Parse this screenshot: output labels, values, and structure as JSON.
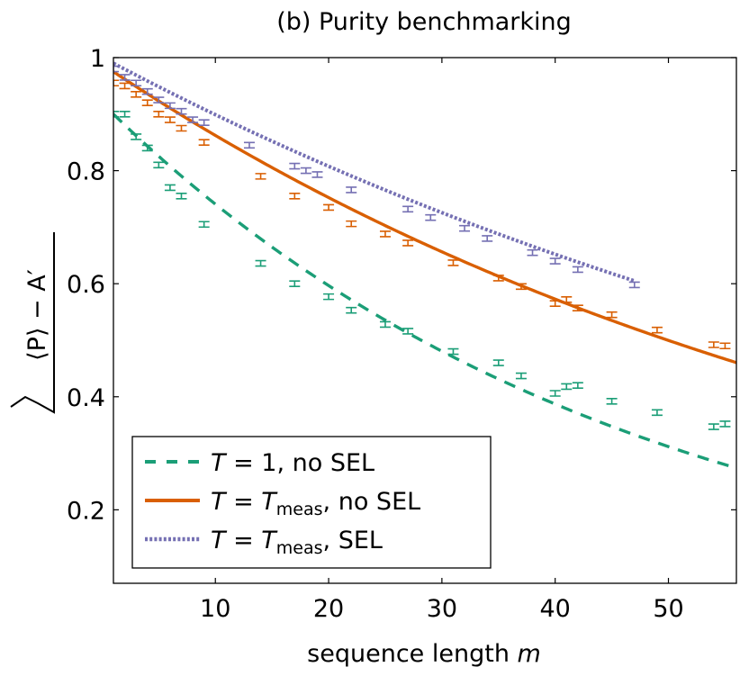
{
  "chart_data": {
    "type": "line",
    "title": "(b) Purity benchmarking",
    "xlabel": "sequence length m",
    "ylabel": "√⟨P⟩ − A′",
    "xlim": [
      1,
      56
    ],
    "ylim": [
      0.07,
      1.0
    ],
    "xticks": [
      10,
      20,
      30,
      40,
      50
    ],
    "yticks": [
      0.2,
      0.4,
      0.6,
      0.8,
      1.0
    ],
    "ytick_labels": [
      "0.2",
      "0.4",
      "0.6",
      "0.8",
      "1"
    ],
    "grid": false,
    "legend": "bottom-left",
    "colors": {
      "green": "#1b9e77",
      "orange": "#d95f02",
      "purple": "#7570b3"
    },
    "series": [
      {
        "name": "T = 1, no SEL",
        "legend": {
          "lhs": "T",
          "rhs": "1",
          "rest": ", no SEL",
          "sub": ""
        },
        "color": "#1b9e77",
        "style": "dashed",
        "fit": {
          "a": 0.9,
          "p": 0.9786
        },
        "points": [
          {
            "x": 1,
            "y": 0.9
          },
          {
            "x": 2,
            "y": 0.9
          },
          {
            "x": 3,
            "y": 0.86
          },
          {
            "x": 4,
            "y": 0.84
          },
          {
            "x": 5,
            "y": 0.81
          },
          {
            "x": 6,
            "y": 0.77
          },
          {
            "x": 7,
            "y": 0.755
          },
          {
            "x": 9,
            "y": 0.705
          },
          {
            "x": 14,
            "y": 0.636
          },
          {
            "x": 17,
            "y": 0.6
          },
          {
            "x": 20,
            "y": 0.577
          },
          {
            "x": 22,
            "y": 0.553
          },
          {
            "x": 25,
            "y": 0.528
          },
          {
            "x": 27,
            "y": 0.516
          },
          {
            "x": 31,
            "y": 0.48
          },
          {
            "x": 35,
            "y": 0.46
          },
          {
            "x": 37,
            "y": 0.437
          },
          {
            "x": 40,
            "y": 0.406
          },
          {
            "x": 41,
            "y": 0.418
          },
          {
            "x": 42,
            "y": 0.42
          },
          {
            "x": 45,
            "y": 0.392
          },
          {
            "x": 49,
            "y": 0.372
          },
          {
            "x": 54,
            "y": 0.347
          },
          {
            "x": 55,
            "y": 0.352
          }
        ]
      },
      {
        "name": "T = Tmeas, no SEL",
        "legend": {
          "lhs": "T",
          "rhs": "T",
          "rest": ", no SEL",
          "sub": "meas"
        },
        "color": "#d95f02",
        "style": "solid",
        "fit": {
          "a": 0.975,
          "p": 0.98645
        },
        "points": [
          {
            "x": 1,
            "y": 0.955
          },
          {
            "x": 2,
            "y": 0.95
          },
          {
            "x": 3,
            "y": 0.935
          },
          {
            "x": 4,
            "y": 0.92
          },
          {
            "x": 5,
            "y": 0.9
          },
          {
            "x": 6,
            "y": 0.89
          },
          {
            "x": 7,
            "y": 0.875
          },
          {
            "x": 9,
            "y": 0.85
          },
          {
            "x": 14,
            "y": 0.79
          },
          {
            "x": 17,
            "y": 0.755
          },
          {
            "x": 20,
            "y": 0.735
          },
          {
            "x": 22,
            "y": 0.706
          },
          {
            "x": 25,
            "y": 0.688
          },
          {
            "x": 27,
            "y": 0.672
          },
          {
            "x": 31,
            "y": 0.637
          },
          {
            "x": 35,
            "y": 0.61
          },
          {
            "x": 37,
            "y": 0.595
          },
          {
            "x": 40,
            "y": 0.565
          },
          {
            "x": 41,
            "y": 0.572
          },
          {
            "x": 42,
            "y": 0.557
          },
          {
            "x": 45,
            "y": 0.545
          },
          {
            "x": 49,
            "y": 0.518
          },
          {
            "x": 54,
            "y": 0.492
          },
          {
            "x": 55,
            "y": 0.49
          }
        ]
      },
      {
        "name": "T = Tmeas, SEL",
        "legend": {
          "lhs": "T",
          "rhs": "T",
          "rest": ", SEL",
          "sub": "meas"
        },
        "color": "#7570b3",
        "style": "dotted",
        "fit": {
          "a": 0.99,
          "p": 0.98935
        },
        "fit_xmax": 47,
        "points": [
          {
            "x": 1,
            "y": 0.98
          },
          {
            "x": 2,
            "y": 0.965
          },
          {
            "x": 3,
            "y": 0.955
          },
          {
            "x": 4,
            "y": 0.94
          },
          {
            "x": 5,
            "y": 0.925
          },
          {
            "x": 6,
            "y": 0.915
          },
          {
            "x": 7,
            "y": 0.905
          },
          {
            "x": 8,
            "y": 0.89
          },
          {
            "x": 9,
            "y": 0.885
          },
          {
            "x": 13,
            "y": 0.845
          },
          {
            "x": 17,
            "y": 0.808
          },
          {
            "x": 18,
            "y": 0.8
          },
          {
            "x": 19,
            "y": 0.793
          },
          {
            "x": 22,
            "y": 0.766
          },
          {
            "x": 27,
            "y": 0.732
          },
          {
            "x": 29,
            "y": 0.717
          },
          {
            "x": 32,
            "y": 0.698
          },
          {
            "x": 34,
            "y": 0.68
          },
          {
            "x": 38,
            "y": 0.655
          },
          {
            "x": 40,
            "y": 0.64
          },
          {
            "x": 42,
            "y": 0.625
          },
          {
            "x": 47,
            "y": 0.598
          }
        ]
      }
    ]
  }
}
